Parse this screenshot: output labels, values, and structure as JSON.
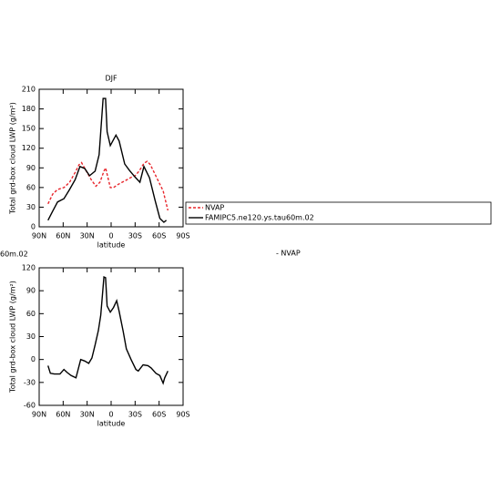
{
  "chart_data": [
    {
      "type": "line",
      "title": "DJF",
      "x_label": "latitude",
      "y_label": "Total grd-box cloud LWP (g/m²)",
      "xlim": [
        90,
        -90
      ],
      "xticks": [
        {
          "value": 90,
          "label": "90N"
        },
        {
          "value": 60,
          "label": "60N"
        },
        {
          "value": 30,
          "label": "30N"
        },
        0,
        {
          "value": -30,
          "label": "30S"
        },
        {
          "value": -60,
          "label": "60S"
        },
        {
          "value": -90,
          "label": "90S"
        }
      ],
      "ylim": [
        0,
        210
      ],
      "yticks": [
        0,
        30,
        60,
        90,
        120,
        150,
        180,
        210
      ],
      "legend": "right",
      "series": [
        {
          "name": "NVAP",
          "color": "#e8262c",
          "dashed": true,
          "x": [
            79,
            73,
            67,
            59,
            52,
            45,
            40,
            37,
            31,
            25,
            19,
            14,
            9,
            7,
            3,
            1,
            -3,
            -9,
            -17,
            -24,
            -30,
            -35,
            -41,
            -45,
            -49,
            -55,
            -61,
            -65,
            -71
          ],
          "values": [
            35,
            50,
            57,
            60,
            68,
            83,
            95,
            98,
            85,
            72,
            62,
            68,
            85,
            90,
            70,
            60,
            60,
            65,
            70,
            75,
            78,
            85,
            97,
            100,
            95,
            80,
            65,
            55,
            25
          ]
        },
        {
          "name": "FAMIPC5.ne120.ys.tau60m.02",
          "color": "#000000",
          "dashed": false,
          "x": [
            79,
            73,
            67,
            59,
            52,
            45,
            39,
            33,
            27,
            20,
            15,
            10,
            7,
            5,
            1,
            -6,
            -10,
            -17,
            -23,
            -30,
            -36,
            -41,
            -48,
            -55,
            -61,
            -66,
            -69
          ],
          "values": [
            10,
            24,
            38,
            43,
            57,
            72,
            92,
            89,
            78,
            85,
            110,
            196,
            196,
            145,
            124,
            140,
            131,
            96,
            86,
            76,
            68,
            92,
            75,
            40,
            13,
            7,
            10
          ]
        }
      ]
    },
    {
      "type": "line",
      "x_label": "latitude",
      "y_label": "Total grd-box cloud LWP (g/m²)",
      "annotations": [
        "60m.02",
        "- NVAP"
      ],
      "xlim": [
        90,
        -90
      ],
      "xticks": [
        {
          "value": 90,
          "label": "90N"
        },
        {
          "value": 60,
          "label": "60N"
        },
        {
          "value": 30,
          "label": "30N"
        },
        0,
        {
          "value": -30,
          "label": "30S"
        },
        {
          "value": -60,
          "label": "60S"
        },
        {
          "value": -90,
          "label": "90S"
        }
      ],
      "ylim": [
        -60,
        120
      ],
      "yticks": [
        -60,
        -30,
        0,
        30,
        60,
        90,
        120
      ],
      "series": [
        {
          "color": "#000000",
          "dashed": false,
          "x": [
            79,
            76,
            71,
            64,
            59,
            55,
            50,
            44,
            38,
            33,
            28,
            24,
            20,
            16,
            13,
            9,
            7,
            5,
            1,
            -3,
            -7,
            -10,
            -15,
            -19,
            -25,
            -31,
            -34,
            -40,
            -46,
            -50,
            -56,
            -61,
            -65,
            -67,
            -71
          ],
          "values": [
            -8,
            -18,
            -19,
            -19,
            -13,
            -17,
            -21,
            -24,
            0,
            -2,
            -5,
            2,
            19,
            38,
            58,
            108,
            107,
            70,
            62,
            68,
            77,
            63,
            37,
            14,
            0,
            -13,
            -15,
            -7,
            -8,
            -11,
            -18,
            -21,
            -31,
            -24,
            -15
          ]
        }
      ]
    }
  ]
}
